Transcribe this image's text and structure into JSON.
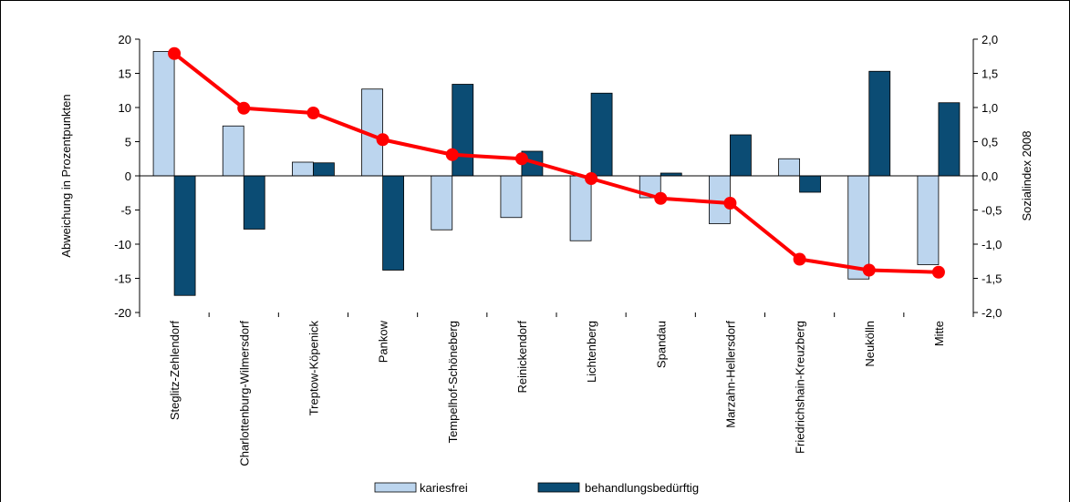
{
  "chart_data": {
    "type": "bar",
    "title": "",
    "categories": [
      "Steglitz-Zehlendorf",
      "Charlottenburg-Wilmersdorf",
      "Treptow-Köpenick",
      "Pankow",
      "Tempelhof-Schöneberg",
      "Reinickendorf",
      "Lichtenberg",
      "Spandau",
      "Marzahn-Hellersdorf",
      "Friedrichshain-Kreuzberg",
      "Neukölln",
      "Mitte"
    ],
    "series": [
      {
        "name": "kariesfrei",
        "axis": "left",
        "kind": "bar",
        "color": "#bcd5ee",
        "values": [
          18.2,
          7.3,
          2.0,
          12.7,
          -7.9,
          -6.1,
          -9.5,
          -3.2,
          -7.0,
          2.5,
          -15.1,
          -13.0
        ]
      },
      {
        "name": "behandlungsbedürftig",
        "axis": "left",
        "kind": "bar",
        "color": "#0b4c74",
        "values": [
          -17.5,
          -7.8,
          1.9,
          -13.8,
          13.4,
          3.6,
          12.1,
          0.4,
          6.0,
          -2.4,
          15.3,
          10.7
        ]
      },
      {
        "axis": "right",
        "kind": "line",
        "color": "#ff0000",
        "values": [
          1.79,
          0.99,
          0.92,
          0.53,
          0.31,
          0.25,
          -0.04,
          -0.33,
          -0.4,
          -1.22,
          -1.38,
          -1.41
        ]
      }
    ],
    "ylabel": "Abweichung in Prozentpunkten",
    "y2label": "Sozialindex 2008",
    "ylim": [
      -20,
      20
    ],
    "y2lim": [
      -2.0,
      2.0
    ],
    "yticks": [
      "20",
      "15",
      "10",
      "5",
      "0",
      "-5",
      "-10",
      "-15",
      "-20"
    ],
    "y2ticks": [
      "2,0",
      "1,5",
      "1,0",
      "0,5",
      "0,0",
      "-0,5",
      "-1,0",
      "-1,5",
      "-2,0"
    ],
    "grid": false,
    "legend_position": "bottom-center"
  }
}
